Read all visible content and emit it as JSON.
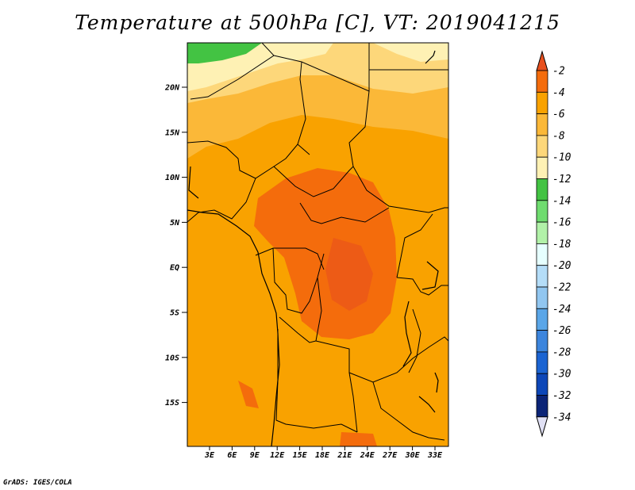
{
  "title": "Temperature at 500hPa [C], VT: 2019041215",
  "credit": "GrADS: IGES/COLA",
  "map": {
    "lat_labels": [
      "20N",
      "15N",
      "10N",
      "5N",
      "EQ",
      "5S",
      "10S",
      "15S"
    ],
    "lon_labels": [
      "3E",
      "6E",
      "9E",
      "12E",
      "15E",
      "18E",
      "21E",
      "24E",
      "27E",
      "30E",
      "33E"
    ]
  },
  "colorbar": {
    "levels": [
      "-2",
      "-4",
      "-6",
      "-8",
      "-10",
      "-12",
      "-14",
      "-16",
      "-18",
      "-20",
      "-22",
      "-24",
      "-26",
      "-28",
      "-30",
      "-32",
      "-34"
    ],
    "colors": [
      "#e8501e",
      "#f46c0c",
      "#f9a200",
      "#fbb838",
      "#fdd77a",
      "#fef1b4",
      "#43c343",
      "#6fdc6f",
      "#b1f1a8",
      "#e6ffff",
      "#b4ddf8",
      "#91c6f0",
      "#5aa6e8",
      "#3c85dd",
      "#1b64d2",
      "#0d47b8",
      "#0b2477",
      "#e0e0f4"
    ]
  }
}
